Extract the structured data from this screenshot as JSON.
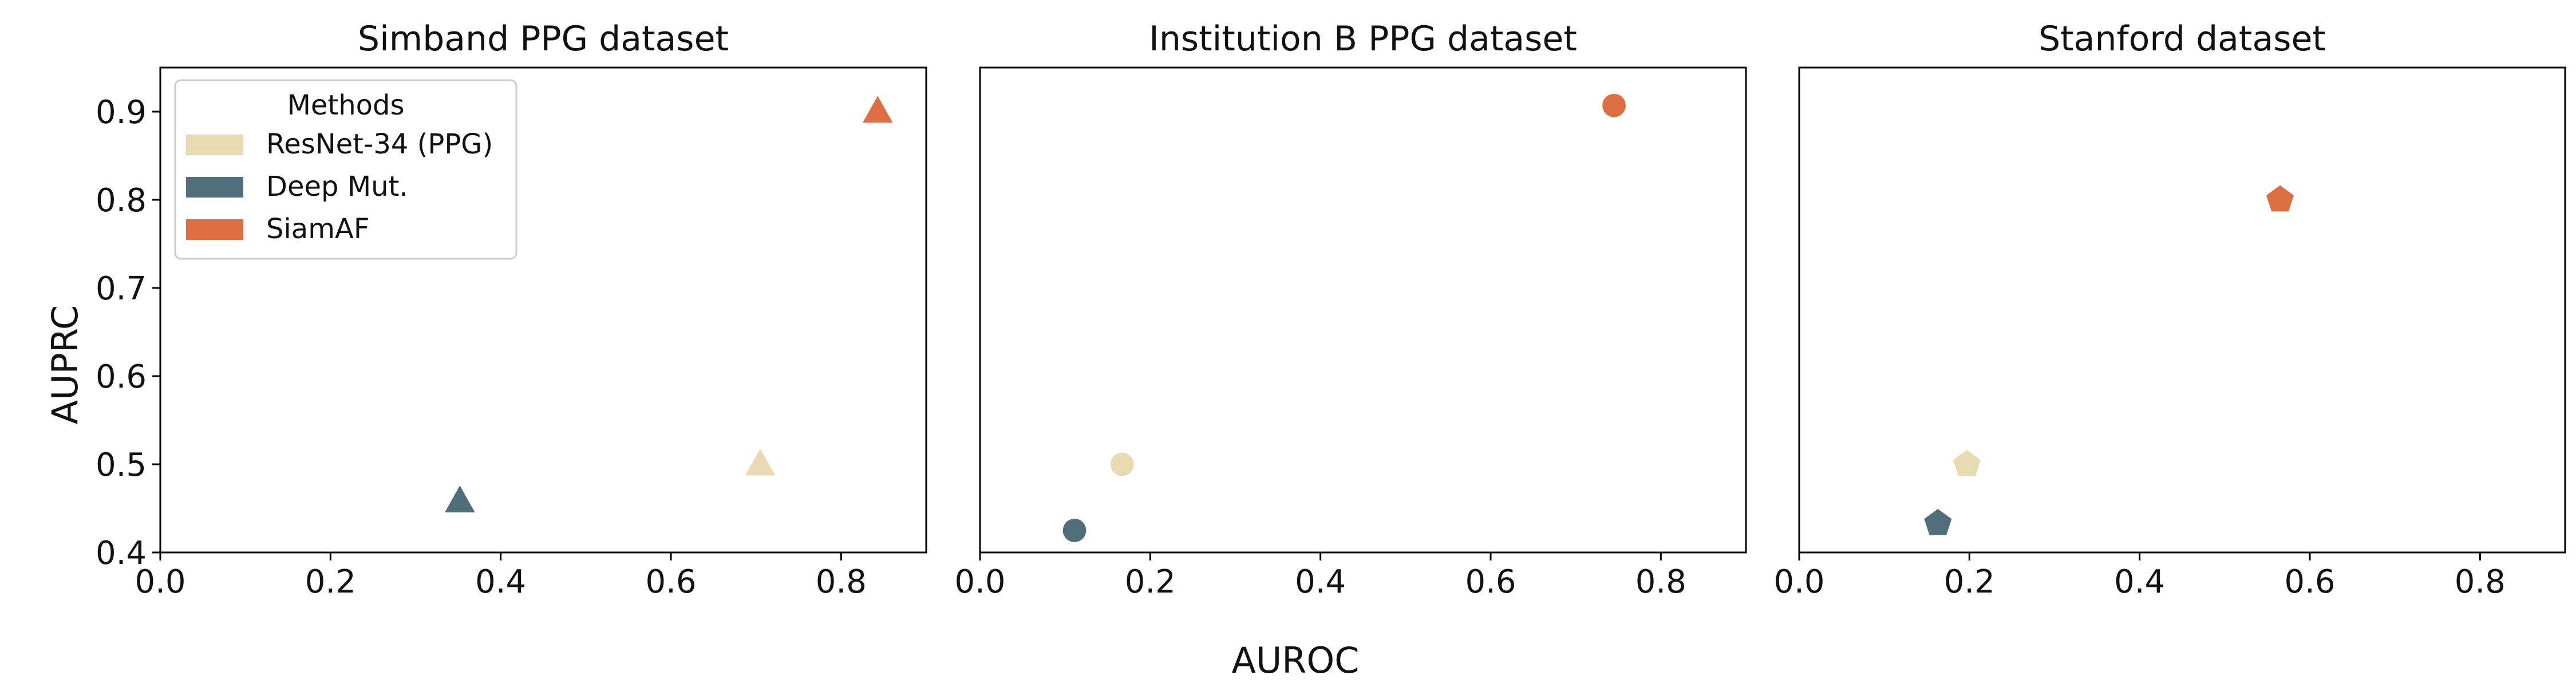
{
  "figure": {
    "shared_xlabel": "AUROC",
    "shared_ylabel": "AUPRC"
  },
  "legend": {
    "title": "Methods",
    "placement": "upper-left of first panel",
    "entries": [
      {
        "label": "ResNet-34 (PPG)",
        "color": "#e8dab2"
      },
      {
        "label": "Deep Mut.",
        "color": "#4f6d7a"
      },
      {
        "label": "SiamAF",
        "color": "#dd6e42"
      }
    ]
  },
  "chart_data": [
    {
      "type": "scatter",
      "title": "Simband PPG dataset",
      "xlabel": "AUROC",
      "ylabel": "AUPRC",
      "xlim": [
        0.0,
        0.9
      ],
      "ylim": [
        0.4,
        0.95
      ],
      "xticks": [
        "0.0",
        "0.2",
        "0.4",
        "0.6",
        "0.8"
      ],
      "yticks": [
        "0.4",
        "0.5",
        "0.6",
        "0.7",
        "0.8",
        "0.9"
      ],
      "marker": "triangle",
      "grid": false,
      "points": [
        {
          "series": "ResNet-34 (PPG)",
          "x": 0.705,
          "y": 0.5,
          "color": "#e8dab2"
        },
        {
          "series": "Deep Mut.",
          "x": 0.352,
          "y": 0.458,
          "color": "#4f6d7a"
        },
        {
          "series": "SiamAF",
          "x": 0.843,
          "y": 0.9,
          "color": "#dd6e42"
        }
      ]
    },
    {
      "type": "scatter",
      "title": "Institution B PPG dataset",
      "xlabel": "AUROC",
      "ylabel": "AUPRC",
      "xlim": [
        0.0,
        0.9
      ],
      "ylim": [
        0.4,
        0.95
      ],
      "xticks": [
        "0.0",
        "0.2",
        "0.4",
        "0.6",
        "0.8"
      ],
      "yticks": [],
      "marker": "circle",
      "grid": false,
      "points": [
        {
          "series": "ResNet-34 (PPG)",
          "x": 0.167,
          "y": 0.5,
          "color": "#e8dab2"
        },
        {
          "series": "Deep Mut.",
          "x": 0.111,
          "y": 0.425,
          "color": "#4f6d7a"
        },
        {
          "series": "SiamAF",
          "x": 0.745,
          "y": 0.907,
          "color": "#dd6e42"
        }
      ]
    },
    {
      "type": "scatter",
      "title": "Stanford dataset",
      "xlabel": "AUROC",
      "ylabel": "AUPRC",
      "xlim": [
        0.0,
        0.9
      ],
      "ylim": [
        0.4,
        0.95
      ],
      "xticks": [
        "0.0",
        "0.2",
        "0.4",
        "0.6",
        "0.8"
      ],
      "yticks": [],
      "marker": "pentagon",
      "grid": false,
      "points": [
        {
          "series": "ResNet-34 (PPG)",
          "x": 0.197,
          "y": 0.5,
          "color": "#e8dab2"
        },
        {
          "series": "Deep Mut.",
          "x": 0.163,
          "y": 0.433,
          "color": "#4f6d7a"
        },
        {
          "series": "SiamAF",
          "x": 0.565,
          "y": 0.8,
          "color": "#dd6e42"
        }
      ]
    }
  ]
}
